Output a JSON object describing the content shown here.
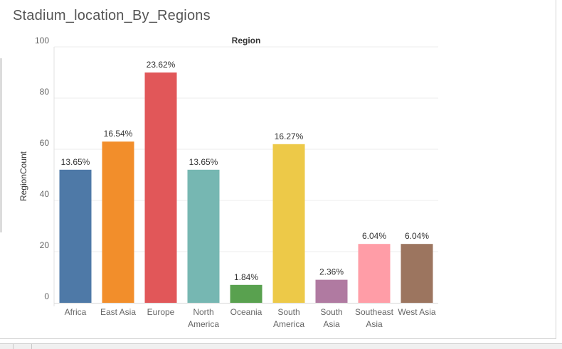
{
  "title": "Stadium_location_By_Regions",
  "chart_data": {
    "type": "bar",
    "title": "Stadium_location_By_Regions",
    "header": "Region",
    "xlabel": "",
    "ylabel": "RegionCount",
    "ylim": [
      0,
      100
    ],
    "yticks": [
      0,
      20,
      40,
      60,
      80,
      100
    ],
    "grid": true,
    "categories": [
      [
        "Africa"
      ],
      [
        "East Asia"
      ],
      [
        "Europe"
      ],
      [
        "North",
        "America"
      ],
      [
        "Oceania"
      ],
      [
        "South",
        "America"
      ],
      [
        "South",
        "Asia"
      ],
      [
        "Southeast",
        "Asia"
      ],
      [
        "West Asia"
      ]
    ],
    "values": [
      52,
      63,
      90,
      52,
      7,
      62,
      9,
      23,
      23
    ],
    "data_labels": [
      "13.65%",
      "16.54%",
      "23.62%",
      "13.65%",
      "1.84%",
      "16.27%",
      "2.36%",
      "6.04%",
      "6.04%"
    ],
    "colors": [
      "#4e79a7",
      "#f28e2b",
      "#e15759",
      "#76b7b2",
      "#59a14f",
      "#edc948",
      "#b07aa1",
      "#ff9da7",
      "#9c755f"
    ]
  }
}
